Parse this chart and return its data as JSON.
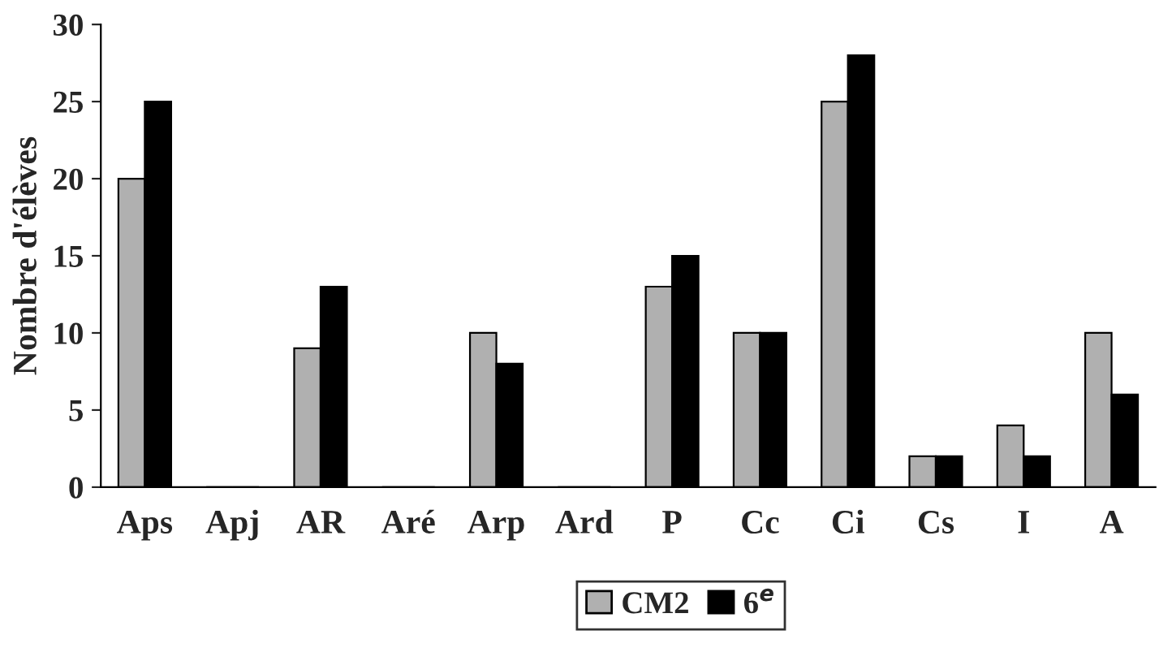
{
  "chart_data": {
    "type": "bar",
    "ylabel": "Nombre d'élèves",
    "categories": [
      "Aps",
      "Apj",
      "AR",
      "Aré",
      "Arp",
      "Ard",
      "P",
      "Cc",
      "Ci",
      "Cs",
      "I",
      "A"
    ],
    "series": [
      {
        "name": "CM2",
        "color": "#b0b0b0",
        "values": [
          20,
          0,
          9,
          0,
          10,
          0,
          13,
          10,
          25,
          2,
          4,
          10
        ]
      },
      {
        "name": "6$^{e}$",
        "color": "#000000",
        "values": [
          25,
          0,
          13,
          0,
          8,
          0,
          15,
          10,
          28,
          2,
          2,
          6
        ]
      }
    ],
    "ylim": [
      0,
      30
    ],
    "yticks": [
      0,
      5,
      10,
      15,
      20,
      25,
      30
    ],
    "grid": false,
    "legend": "bottom"
  }
}
